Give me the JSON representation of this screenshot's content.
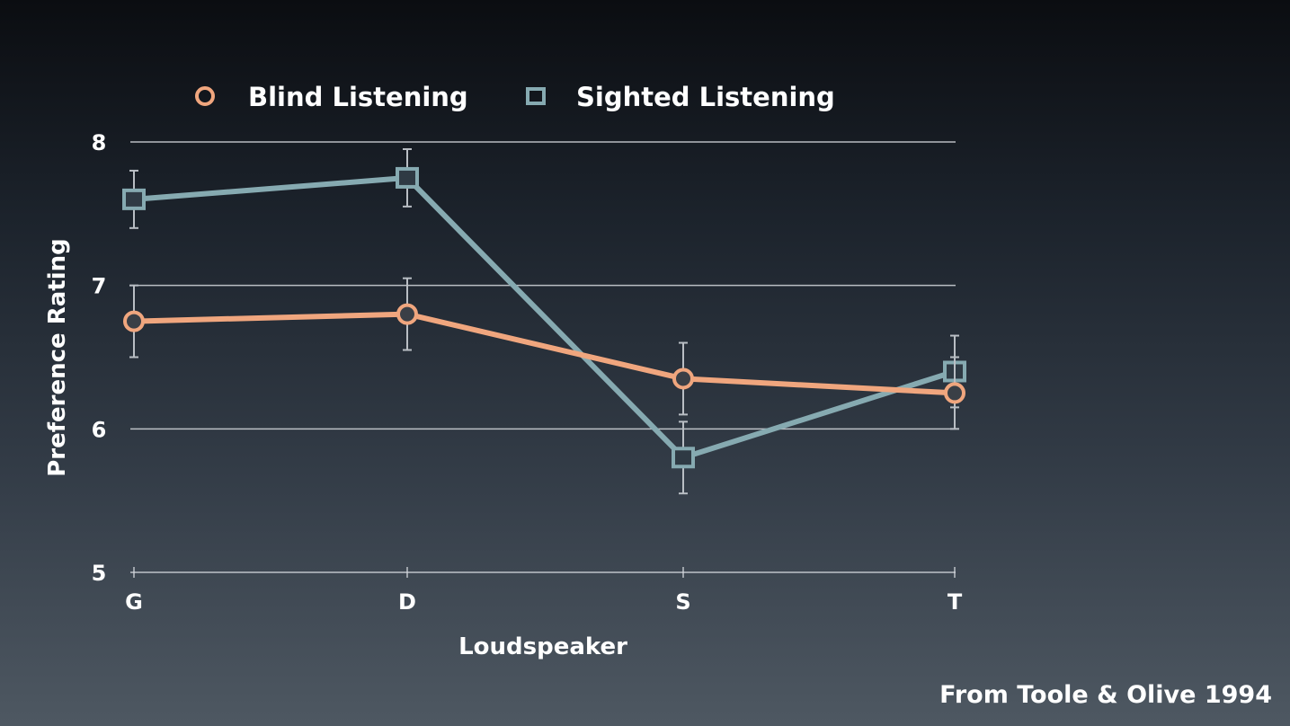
{
  "chart_data": {
    "type": "line",
    "categories": [
      "G",
      "D",
      "S",
      "T"
    ],
    "xlabel": "Loudspeaker",
    "ylabel": "Preference Rating",
    "ylim": [
      5,
      8
    ],
    "yticks": [
      5,
      6,
      7,
      8
    ],
    "grid": true,
    "legend_position": "top",
    "series": [
      {
        "name": "Blind Listening",
        "color": "#f0a67e",
        "marker": "circle",
        "values": [
          6.75,
          6.8,
          6.35,
          6.25
        ],
        "error": [
          0.25,
          0.25,
          0.25,
          0.25
        ]
      },
      {
        "name": "Sighted Listening",
        "color": "#86aab1",
        "marker": "square",
        "values": [
          7.6,
          7.75,
          5.8,
          6.4
        ],
        "error": [
          0.2,
          0.2,
          0.25,
          0.25
        ]
      }
    ],
    "annotation": "From Toole & Olive 1994"
  }
}
